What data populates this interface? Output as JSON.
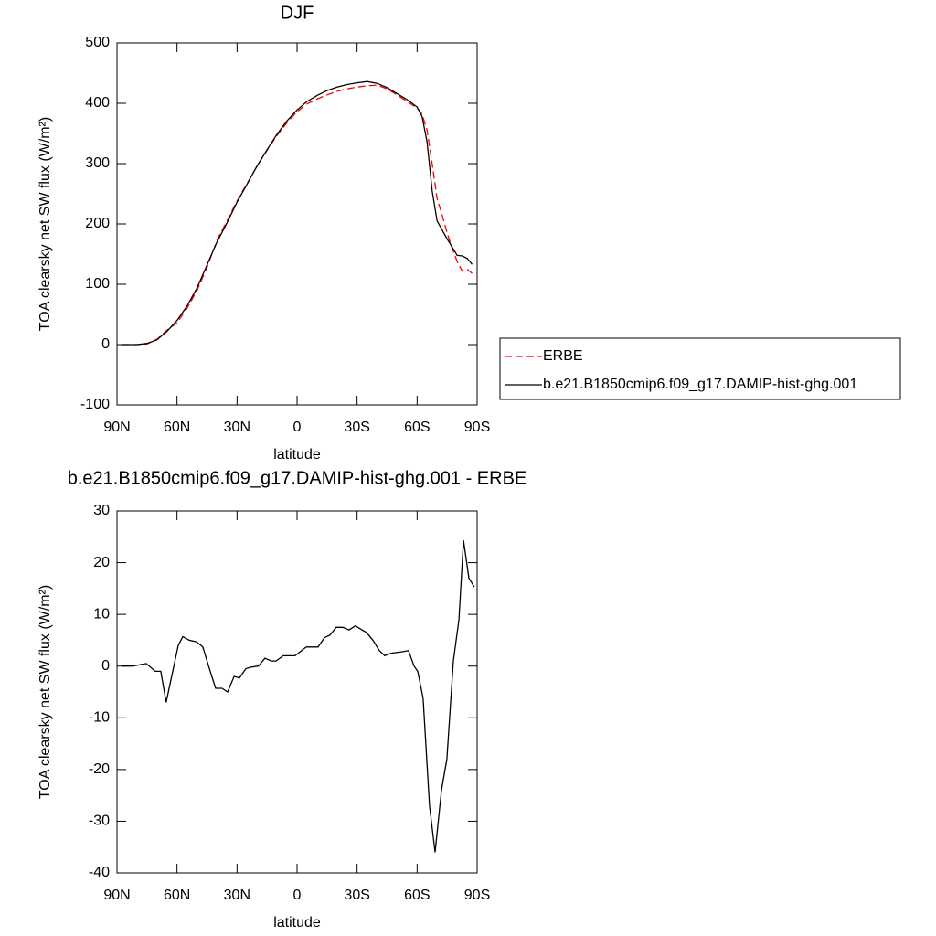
{
  "chart_data": [
    {
      "type": "line",
      "title": "DJF",
      "x_label": "latitude",
      "y_label": "TOA clearsky net SW flux (W/m²)",
      "x": [
        87.5,
        80,
        75,
        70,
        65,
        60,
        55,
        50,
        45,
        40,
        35,
        30,
        25,
        20,
        15,
        10,
        5,
        0,
        -5,
        -10,
        -15,
        -20,
        -25,
        -30,
        -35,
        -40,
        -45,
        -50,
        -55,
        -60,
        -62.5,
        -65,
        -67.5,
        -70,
        -72.5,
        -75,
        -77.5,
        -80,
        -82.5,
        -85,
        -87.5
      ],
      "series": [
        {
          "name": "ERBE",
          "color": "#ff0000",
          "dash": true,
          "values": [
            0,
            0,
            1,
            9,
            24,
            36,
            60,
            90,
            128,
            173,
            205,
            238,
            267,
            296,
            322,
            347,
            368,
            386,
            399,
            407,
            414,
            420,
            424,
            427,
            429,
            430,
            424,
            414,
            403,
            392,
            382,
            355,
            300,
            242,
            215,
            185,
            160,
            138,
            122,
            125,
            118
          ]
        },
        {
          "name": "b.e21.B1850cmip6.f09_g17.DAMIP-hist-ghg.001",
          "color": "#000000",
          "dash": false,
          "values": [
            0,
            0,
            2,
            8,
            22,
            40,
            64,
            94,
            132,
            170,
            202,
            236,
            266,
            296,
            323,
            349,
            371,
            389,
            403,
            413,
            421,
            427,
            431,
            434,
            436,
            433,
            426,
            416,
            406,
            394,
            378,
            335,
            255,
            205,
            190,
            175,
            162,
            148,
            147,
            143,
            133
          ]
        }
      ],
      "xlim": [
        90,
        -90
      ],
      "xticks": [
        {
          "value": 90,
          "label": "90N"
        },
        {
          "value": 60,
          "label": "60N"
        },
        {
          "value": 30,
          "label": "30N"
        },
        0,
        {
          "value": -30,
          "label": "30S"
        },
        {
          "value": -60,
          "label": "60S"
        },
        {
          "value": -90,
          "label": "90S"
        }
      ],
      "ylim": [
        -100,
        500
      ],
      "yticks": [
        -100,
        0,
        100,
        200,
        300,
        400,
        500
      ],
      "legend": "outside-right"
    },
    {
      "type": "line",
      "title": "b.e21.B1850cmip6.f09_g17.DAMIP-hist-ghg.001 - ERBE",
      "x_label": "latitude",
      "y_label": "TOA clearsky net SW flux (W/m²)",
      "x": [
        87.7,
        82.2,
        75.4,
        70.9,
        68.1,
        65.4,
        59.4,
        57.1,
        53.9,
        50.3,
        47.1,
        43.4,
        40.7,
        37.5,
        34.7,
        31.5,
        28.8,
        25.6,
        22.9,
        19.3,
        16.1,
        12.8,
        10.5,
        6.9,
        3.7,
        1.0,
        -4.6,
        -10.5,
        -13.7,
        -16.4,
        -19.6,
        -22.8,
        -26.0,
        -29.2,
        -32.4,
        -34.7,
        -37.9,
        -41.1,
        -43.8,
        -47.0,
        -53.0,
        -55.7,
        -58.5,
        -60.3,
        -63.0,
        -66.2,
        -69.0,
        -72.2,
        -74.9,
        -78.1,
        -80.9,
        -83.2,
        -85.9,
        -88.6
      ],
      "values": [
        0,
        0,
        0.5,
        -1,
        -1,
        -7,
        4,
        5.7,
        5,
        4.7,
        3.7,
        -1,
        -4.3,
        -4.3,
        -5,
        -2,
        -2.3,
        -0.5,
        -0.2,
        0,
        1.5,
        1,
        1,
        2,
        2,
        2,
        3.7,
        3.7,
        5.5,
        6,
        7.5,
        7.5,
        7,
        7.8,
        7,
        6.5,
        5,
        3,
        2,
        2.5,
        2.8,
        3,
        0,
        -1,
        -6.2,
        -27,
        -36,
        -24,
        -18,
        1,
        9,
        24.3,
        17,
        15.3
      ],
      "color": "#000000",
      "xlim": [
        90,
        -90
      ],
      "xticks": [
        {
          "value": 90,
          "label": "90N"
        },
        {
          "value": 60,
          "label": "60N"
        },
        {
          "value": 30,
          "label": "30N"
        },
        0,
        {
          "value": -30,
          "label": "30S"
        },
        {
          "value": -60,
          "label": "60S"
        },
        {
          "value": -90,
          "label": "90S"
        }
      ],
      "ylim": [
        -40,
        30
      ],
      "yticks": [
        -40,
        -30,
        -20,
        -10,
        0,
        10,
        20,
        30
      ]
    }
  ]
}
